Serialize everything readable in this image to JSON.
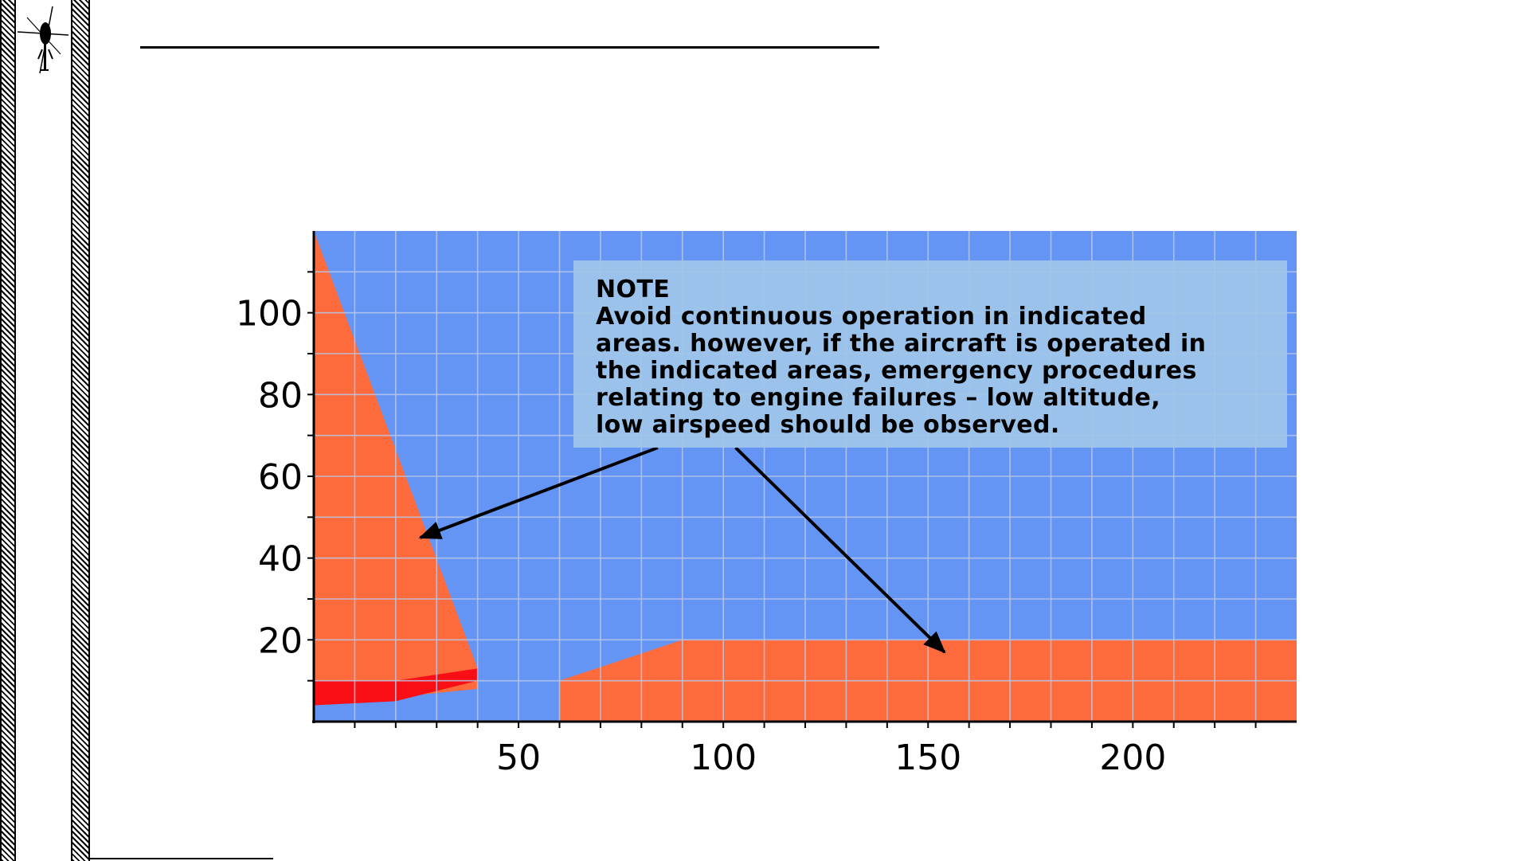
{
  "note": {
    "title": "NOTE",
    "lines": [
      "Avoid continuous operation in indicated",
      "areas. however, if the aircraft is operated in",
      "the indicated areas, emergency procedures",
      "relating to engine failures – low altitude,",
      "low airspeed should be observed."
    ]
  },
  "chart_data": {
    "type": "area",
    "xlim": [
      0,
      240
    ],
    "ylim": [
      0,
      120
    ],
    "x_ticks": [
      50,
      100,
      150,
      200
    ],
    "y_ticks": [
      20,
      40,
      60,
      80,
      100
    ],
    "grid": true,
    "colors": {
      "background": "#6495f5",
      "avoid_area": "#fd6b3d",
      "critical_area": "#f80e14",
      "grid": "#b9c7e6"
    },
    "regions": [
      {
        "role": "avoid-low-speed-area",
        "color": "#fd6b3d",
        "points": [
          [
            0,
            120
          ],
          [
            0,
            4
          ],
          [
            40,
            8
          ],
          [
            40,
            13
          ]
        ]
      },
      {
        "role": "critical-low-altitude-area",
        "color": "#f80e14",
        "points": [
          [
            0,
            4
          ],
          [
            0,
            10
          ],
          [
            20,
            10
          ],
          [
            40,
            13
          ],
          [
            40,
            10
          ],
          [
            20,
            5
          ]
        ]
      },
      {
        "role": "avoid-low-altitude-area",
        "color": "#fd6b3d",
        "points": [
          [
            60,
            0
          ],
          [
            60,
            10
          ],
          [
            90,
            20
          ],
          [
            240,
            20
          ],
          [
            240,
            0
          ]
        ]
      }
    ],
    "arrows": [
      {
        "from": [
          84,
          67
        ],
        "to": [
          26,
          45
        ]
      },
      {
        "from": [
          103,
          67
        ],
        "to": [
          154,
          17
        ]
      }
    ]
  }
}
